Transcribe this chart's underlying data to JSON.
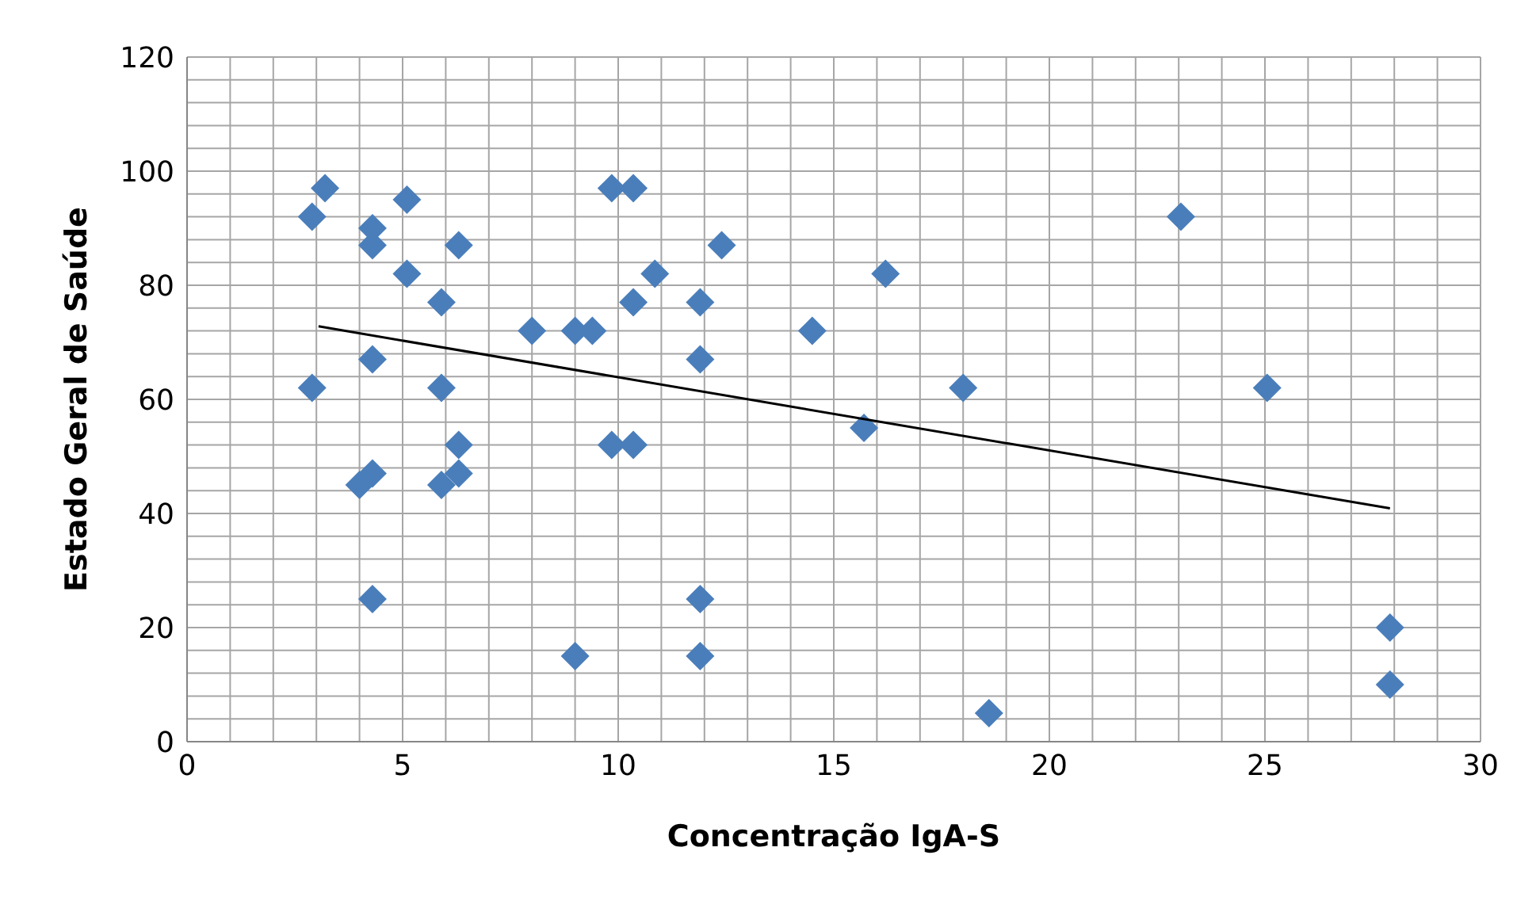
{
  "chart_data": {
    "type": "scatter",
    "xlabel": "Concentração IgA-S",
    "ylabel": "Estado Geral de Saúde",
    "xlim": [
      0,
      30
    ],
    "ylim": [
      0,
      120
    ],
    "xticks": [
      0,
      {
        "value": 1,
        "label": null
      },
      {
        "value": 2,
        "label": null
      },
      {
        "value": 3,
        "label": null
      },
      {
        "value": 4,
        "label": null
      },
      5,
      {
        "value": 6,
        "label": null
      },
      {
        "value": 7,
        "label": null
      },
      {
        "value": 8,
        "label": null
      },
      {
        "value": 9,
        "label": null
      },
      10,
      {
        "value": 11,
        "label": null
      },
      {
        "value": 12,
        "label": null
      },
      {
        "value": 13,
        "label": null
      },
      {
        "value": 14,
        "label": null
      },
      15,
      {
        "value": 16,
        "label": null
      },
      {
        "value": 17,
        "label": null
      },
      {
        "value": 18,
        "label": null
      },
      {
        "value": 19,
        "label": null
      },
      20,
      {
        "value": 21,
        "label": null
      },
      {
        "value": 22,
        "label": null
      },
      {
        "value": 23,
        "label": null
      },
      {
        "value": 24,
        "label": null
      },
      25,
      {
        "value": 26,
        "label": null
      },
      {
        "value": 27,
        "label": null
      },
      {
        "value": 28,
        "label": null
      },
      {
        "value": 29,
        "label": null
      },
      30
    ],
    "yticks": [
      0,
      {
        "value": 4,
        "label": null
      },
      {
        "value": 8,
        "label": null
      },
      {
        "value": 12,
        "label": null
      },
      {
        "value": 16,
        "label": null
      },
      20,
      {
        "value": 24,
        "label": null
      },
      {
        "value": 28,
        "label": null
      },
      {
        "value": 32,
        "label": null
      },
      {
        "value": 36,
        "label": null
      },
      40,
      {
        "value": 44,
        "label": null
      },
      {
        "value": 48,
        "label": null
      },
      {
        "value": 52,
        "label": null
      },
      {
        "value": 56,
        "label": null
      },
      60,
      {
        "value": 64,
        "label": null
      },
      {
        "value": 68,
        "label": null
      },
      {
        "value": 72,
        "label": null
      },
      {
        "value": 76,
        "label": null
      },
      80,
      {
        "value": 84,
        "label": null
      },
      {
        "value": 88,
        "label": null
      },
      {
        "value": 92,
        "label": null
      },
      {
        "value": 96,
        "label": null
      },
      100,
      {
        "value": 104,
        "label": null
      },
      {
        "value": 108,
        "label": null
      },
      {
        "value": 112,
        "label": null
      },
      {
        "value": 116,
        "label": null
      },
      120
    ],
    "grid": true,
    "series": [
      {
        "marker": "diamond",
        "color": "#4a7ebb",
        "x": [
          2.9,
          3.2,
          2.9,
          4.3,
          4.3,
          4.3,
          4.0,
          4.3,
          4.3,
          5.1,
          5.1,
          5.9,
          5.9,
          5.9,
          6.3,
          6.3,
          6.3,
          8.0,
          9.0,
          9.4,
          9.0,
          9.85,
          10.35,
          9.85,
          10.35,
          10.35,
          10.85,
          11.9,
          11.9,
          11.9,
          11.9,
          12.4,
          14.5,
          15.7,
          16.2,
          18.0,
          18.6,
          23.05,
          25.05,
          27.9,
          27.9
        ],
        "values": [
          92,
          97,
          62,
          90,
          87,
          67,
          45,
          47,
          25,
          95,
          82,
          77,
          62,
          45,
          47,
          52,
          87,
          72,
          72,
          72,
          15,
          97,
          97,
          52,
          52,
          77,
          82,
          77,
          67,
          25,
          15,
          87,
          72,
          55,
          82,
          62,
          5,
          92,
          62,
          20,
          10
        ]
      },
      {
        "type": "line",
        "marker": "none",
        "color": "#000000",
        "x": [
          3.05,
          27.9
        ],
        "values": [
          72.8,
          40.9
        ]
      }
    ]
  }
}
